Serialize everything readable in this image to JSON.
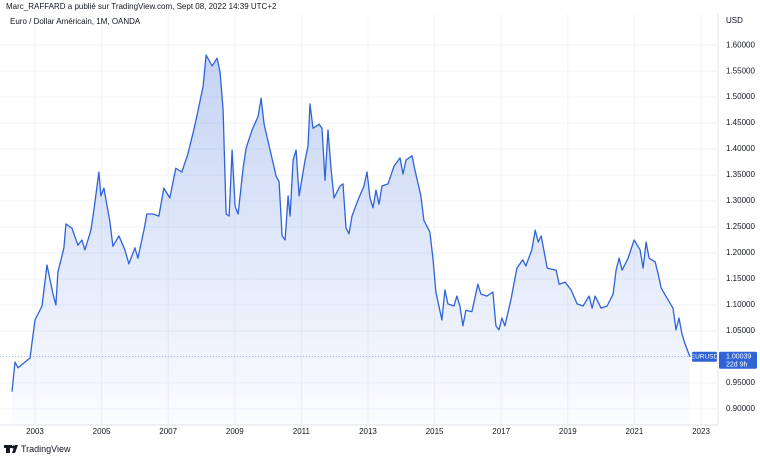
{
  "header": {
    "text": "Marc_RAFFARD a publié sur TradingView.com, Sept 08, 2022 14:39 UTC+2"
  },
  "chart_data": {
    "type": "area",
    "title": "Euro / Dollar Américain, 1M, OANDA",
    "y_axis_label": "USD",
    "x": [
      2002.31,
      2002.4,
      2002.49,
      2002.85,
      2003.0,
      2003.21,
      2003.36,
      2003.54,
      2003.63,
      2003.69,
      2003.87,
      2003.93,
      2004.11,
      2004.29,
      2004.41,
      2004.5,
      2004.68,
      2004.77,
      2004.92,
      2004.98,
      2005.07,
      2005.25,
      2005.34,
      2005.52,
      2005.7,
      2005.82,
      2006.0,
      2006.09,
      2006.27,
      2006.36,
      2006.54,
      2006.72,
      2006.87,
      2007.05,
      2007.23,
      2007.41,
      2007.59,
      2007.77,
      2007.86,
      2008.05,
      2008.14,
      2008.32,
      2008.47,
      2008.56,
      2008.65,
      2008.74,
      2008.83,
      2008.92,
      2009.01,
      2009.1,
      2009.25,
      2009.34,
      2009.52,
      2009.7,
      2009.79,
      2009.88,
      2010.06,
      2010.24,
      2010.33,
      2010.42,
      2010.51,
      2010.6,
      2010.66,
      2010.75,
      2010.84,
      2010.93,
      2011.11,
      2011.2,
      2011.26,
      2011.35,
      2011.53,
      2011.62,
      2011.71,
      2011.8,
      2011.89,
      2011.98,
      2012.16,
      2012.25,
      2012.34,
      2012.43,
      2012.52,
      2012.7,
      2012.88,
      2012.97,
      2013.06,
      2013.15,
      2013.24,
      2013.33,
      2013.42,
      2013.6,
      2013.78,
      2013.96,
      2014.05,
      2014.14,
      2014.32,
      2014.41,
      2014.59,
      2014.68,
      2014.86,
      2014.95,
      2015.04,
      2015.22,
      2015.31,
      2015.4,
      2015.58,
      2015.67,
      2015.76,
      2015.85,
      2015.94,
      2016.12,
      2016.3,
      2016.39,
      2016.57,
      2016.75,
      2016.84,
      2016.93,
      2017.02,
      2017.11,
      2017.29,
      2017.47,
      2017.65,
      2017.74,
      2017.92,
      2018.02,
      2018.11,
      2018.2,
      2018.38,
      2018.65,
      2018.74,
      2018.92,
      2019.1,
      2019.28,
      2019.46,
      2019.64,
      2019.73,
      2019.82,
      2020.0,
      2020.18,
      2020.36,
      2020.45,
      2020.54,
      2020.63,
      2020.81,
      2020.99,
      2021.17,
      2021.26,
      2021.35,
      2021.44,
      2021.62,
      2021.71,
      2021.8,
      2021.98,
      2022.16,
      2022.25,
      2022.34,
      2022.43,
      2022.52,
      2022.67
    ],
    "series": [
      {
        "name": "EURUSD",
        "color": "#2f63d8",
        "values": [
          0.933,
          0.99,
          0.979,
          0.998,
          1.071,
          1.098,
          1.177,
          1.121,
          1.1,
          1.163,
          1.21,
          1.256,
          1.248,
          1.215,
          1.225,
          1.206,
          1.244,
          1.283,
          1.356,
          1.31,
          1.325,
          1.26,
          1.213,
          1.233,
          1.206,
          1.179,
          1.21,
          1.19,
          1.244,
          1.275,
          1.275,
          1.271,
          1.325,
          1.306,
          1.363,
          1.356,
          1.39,
          1.437,
          1.463,
          1.521,
          1.581,
          1.56,
          1.575,
          1.548,
          1.475,
          1.275,
          1.271,
          1.398,
          1.29,
          1.275,
          1.363,
          1.402,
          1.437,
          1.463,
          1.498,
          1.448,
          1.398,
          1.348,
          1.337,
          1.233,
          1.225,
          1.31,
          1.271,
          1.379,
          1.398,
          1.31,
          1.379,
          1.406,
          1.487,
          1.44,
          1.448,
          1.44,
          1.34,
          1.437,
          1.363,
          1.306,
          1.329,
          1.333,
          1.248,
          1.237,
          1.271,
          1.302,
          1.329,
          1.356,
          1.306,
          1.287,
          1.321,
          1.294,
          1.329,
          1.333,
          1.367,
          1.383,
          1.352,
          1.379,
          1.387,
          1.36,
          1.31,
          1.263,
          1.24,
          1.19,
          1.125,
          1.071,
          1.129,
          1.102,
          1.098,
          1.117,
          1.098,
          1.06,
          1.09,
          1.087,
          1.14,
          1.121,
          1.117,
          1.125,
          1.06,
          1.052,
          1.075,
          1.06,
          1.11,
          1.171,
          1.187,
          1.175,
          1.206,
          1.244,
          1.221,
          1.233,
          1.171,
          1.167,
          1.14,
          1.144,
          1.129,
          1.102,
          1.098,
          1.117,
          1.094,
          1.117,
          1.094,
          1.098,
          1.121,
          1.167,
          1.19,
          1.167,
          1.19,
          1.225,
          1.206,
          1.171,
          1.221,
          1.19,
          1.183,
          1.16,
          1.133,
          1.113,
          1.094,
          1.052,
          1.075,
          1.044,
          1.025,
          1.0
        ]
      }
    ],
    "last_value": 1.00039,
    "countdown": "22d 9h",
    "xlim": [
      2001.95,
      2023.51
    ],
    "xticks": [
      2003,
      2005,
      2007,
      2009,
      2011,
      2013,
      2015,
      2017,
      2019,
      2021,
      2023
    ],
    "ylim": [
      0.869,
      1.66
    ],
    "yticks": [
      {
        "value": 0.9,
        "label": "0.90000"
      },
      {
        "value": 0.95,
        "label": "0.95000"
      },
      {
        "value": 1.0,
        "label": "1.00000"
      },
      {
        "value": 1.05,
        "label": "1.05000"
      },
      {
        "value": 1.1,
        "label": "1.10000"
      },
      {
        "value": 1.15,
        "label": "1.15000"
      },
      {
        "value": 1.2,
        "label": "1.20000"
      },
      {
        "value": 1.25,
        "label": "1.25000"
      },
      {
        "value": 1.3,
        "label": "1.30000"
      },
      {
        "value": 1.35,
        "label": "1.35000"
      },
      {
        "value": 1.4,
        "label": "1.40000"
      },
      {
        "value": 1.45,
        "label": "1.45000"
      },
      {
        "value": 1.5,
        "label": "1.50000"
      },
      {
        "value": 1.55,
        "label": "1.55000"
      },
      {
        "value": 1.6,
        "label": "1.60000"
      }
    ],
    "grid": true
  },
  "footer": {
    "brand": "TradingView"
  }
}
